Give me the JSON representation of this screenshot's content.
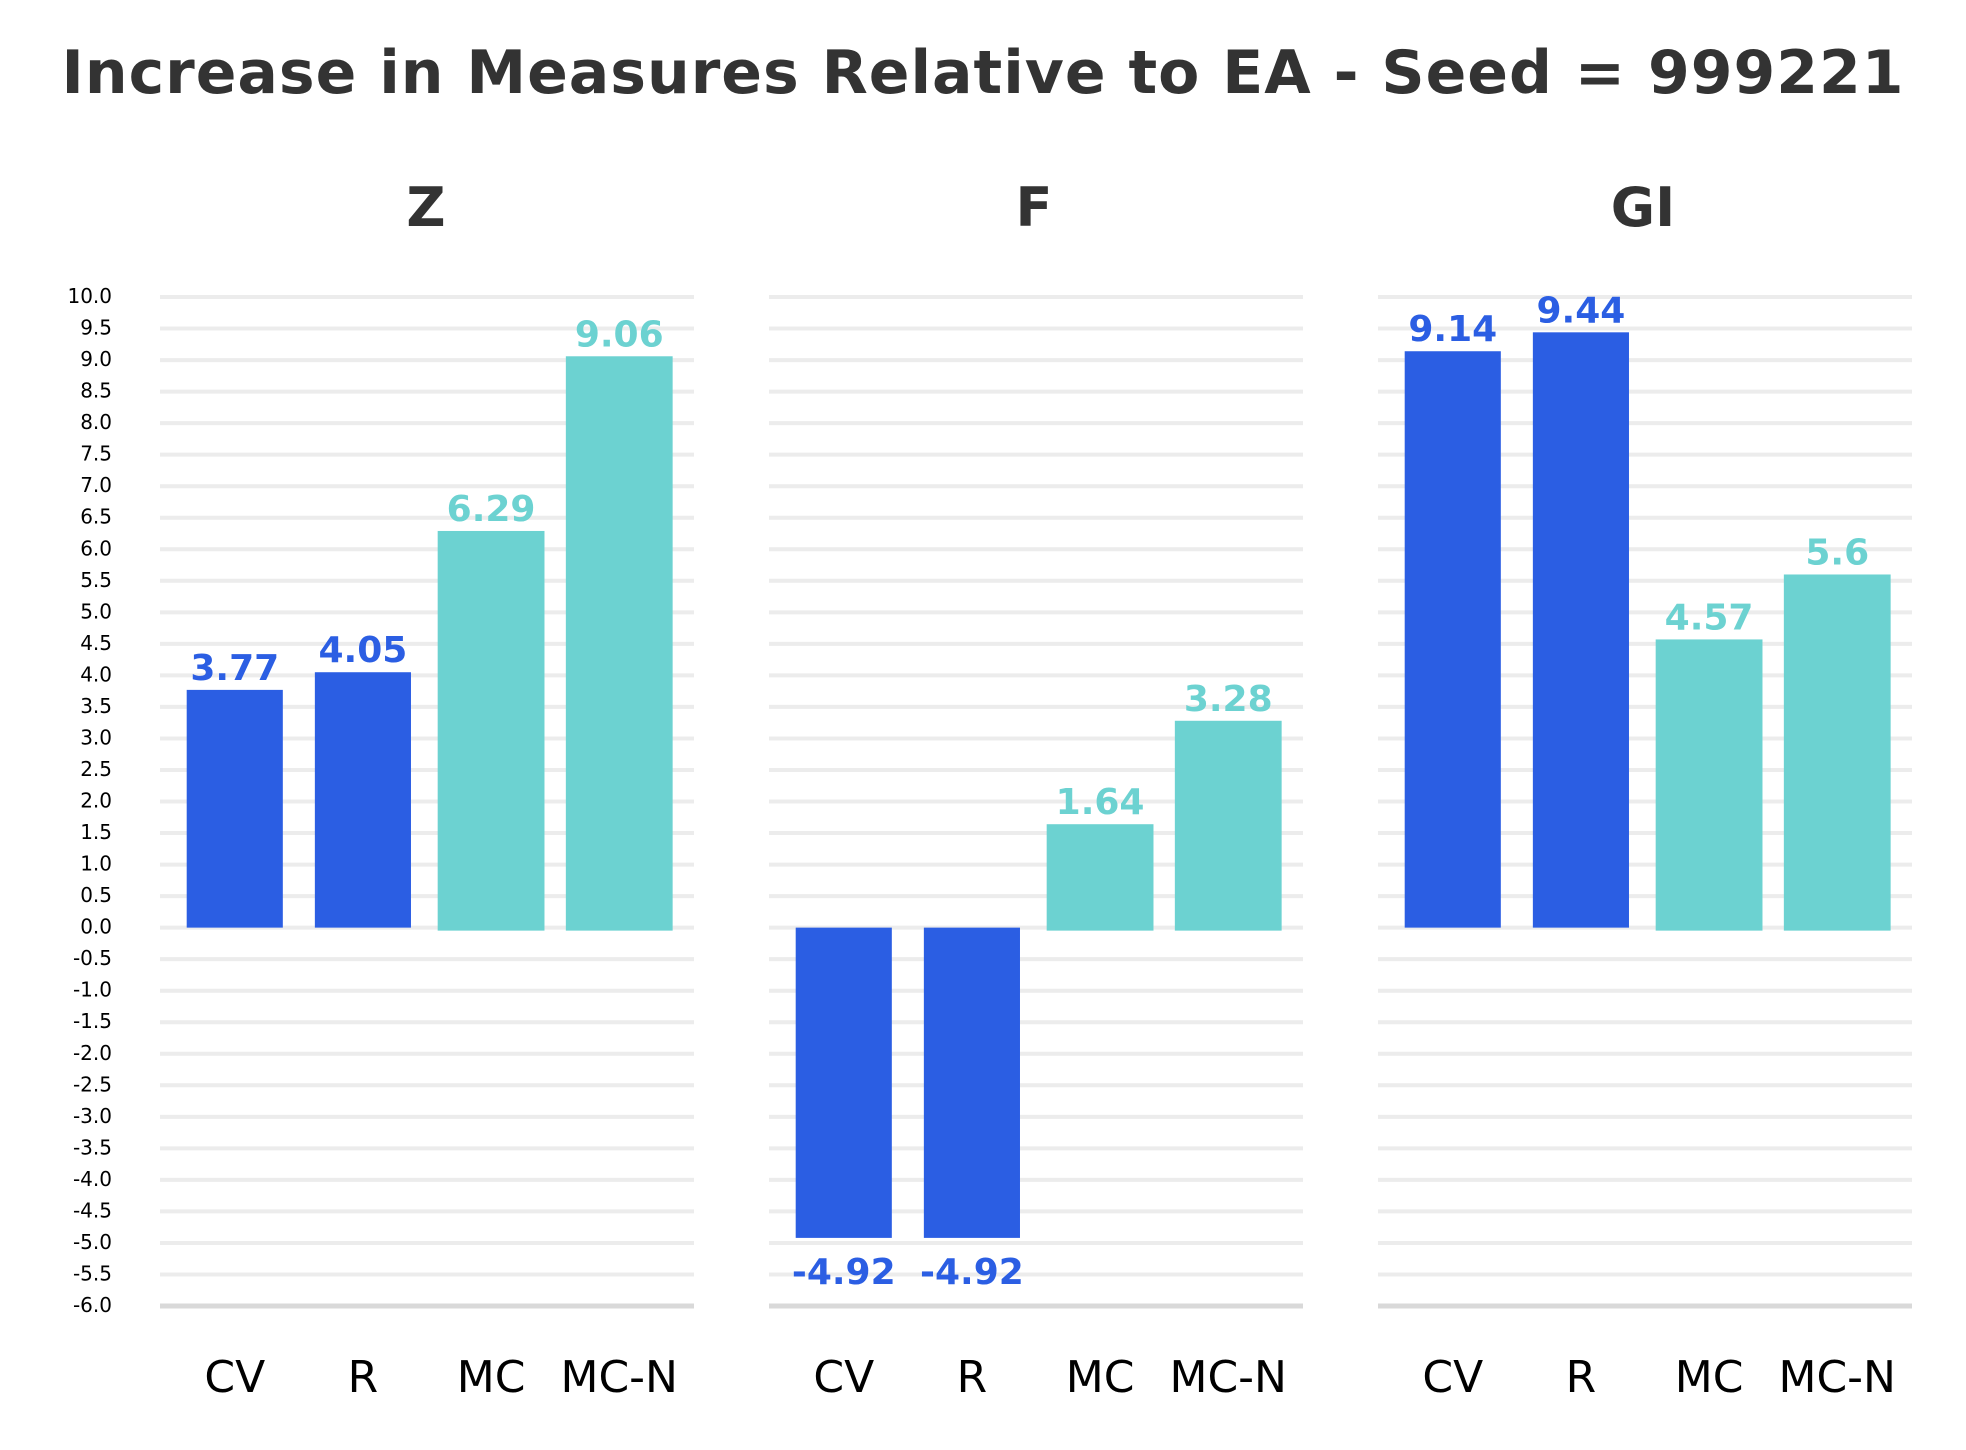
{
  "chart_data": {
    "type": "bar",
    "title": "Increase in Measures Relative to EA - Seed = 999221",
    "categories": [
      "CV",
      "R",
      "MC",
      "MC-N"
    ],
    "ylim": [
      -6.0,
      10.0
    ],
    "y_ticks": [
      "10.0",
      "9.5",
      "9.0",
      "8.5",
      "8.0",
      "7.5",
      "7.0",
      "6.5",
      "6.0",
      "5.5",
      "5.0",
      "4.5",
      "4.0",
      "3.5",
      "3.0",
      "2.5",
      "2.0",
      "1.5",
      "1.0",
      "0.5",
      "0.0",
      "-0.5",
      "-1.0",
      "-1.5",
      "-2.0",
      "-2.5",
      "-3.0",
      "-3.5",
      "-4.0",
      "-4.5",
      "-5.0",
      "-5.5",
      "-6.0"
    ],
    "grid": true,
    "colors": {
      "blue": "#2b5ee3",
      "teal": "#6cd2d1",
      "grid": "#ececec",
      "text": "#333333"
    },
    "panels": [
      {
        "name": "Z",
        "values": [
          3.77,
          4.05,
          6.29,
          9.06
        ],
        "labels": [
          "3.77",
          "4.05",
          "6.29",
          "9.06"
        ]
      },
      {
        "name": "F",
        "values": [
          -4.92,
          -4.92,
          1.64,
          3.28
        ],
        "labels": [
          "-4.92",
          "-4.92",
          "1.64",
          "3.28"
        ]
      },
      {
        "name": "GI",
        "values": [
          9.14,
          9.44,
          4.57,
          5.6
        ],
        "labels": [
          "9.14",
          "9.44",
          "4.57",
          "5.6"
        ]
      }
    ]
  }
}
